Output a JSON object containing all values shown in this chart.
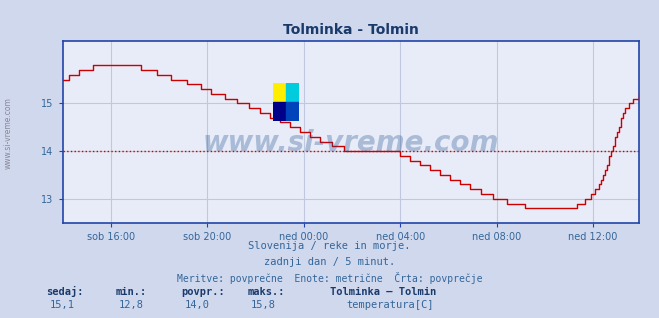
{
  "title": "Tolminka - Tolmin",
  "title_color": "#1a3a6b",
  "bg_color": "#d0d8ee",
  "plot_bg_color": "#e8ecf8",
  "grid_color": "#c0c8e0",
  "line_color": "#cc0000",
  "avg_line_color": "#cc0000",
  "avg_value": 14.0,
  "x_labels": [
    "sob 16:00",
    "sob 20:00",
    "ned 00:00",
    "ned 04:00",
    "ned 08:00",
    "ned 12:00"
  ],
  "y_ticks": [
    13,
    14,
    15
  ],
  "y_min": 12.5,
  "y_max": 16.3,
  "subtitle1": "Slovenija / reke in morje.",
  "subtitle2": "zadnji dan / 5 minut.",
  "subtitle3": "Meritve: povprečne  Enote: metrične  Črta: povprečje",
  "subtitle_color": "#336699",
  "footer_label1": "sedaj:",
  "footer_label2": "min.:",
  "footer_label3": "povpr.:",
  "footer_label4": "maks.:",
  "footer_val1": "15,1",
  "footer_val2": "12,8",
  "footer_val3": "14,0",
  "footer_val4": "15,8",
  "footer_series": "Tolminka – Tolmin",
  "footer_param": "temperatura[C]",
  "footer_color": "#336699",
  "footer_bold_color": "#1a3a6b",
  "watermark": "www.si-vreme.com",
  "watermark_color": "#1a4a8a",
  "tick_color": "#336699",
  "left_label": "www.si-vreme.com",
  "axis_color": "#2244aa",
  "n_points": 288
}
